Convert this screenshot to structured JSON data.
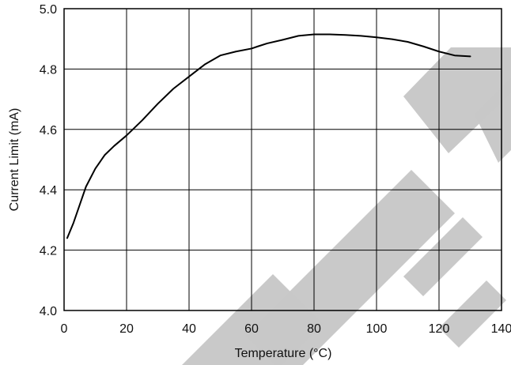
{
  "chart_data": {
    "type": "line",
    "title": "",
    "xlabel": "Temperature (°C)",
    "ylabel": "Current Limit (mA)",
    "xlim": [
      0,
      140
    ],
    "ylim": [
      4.0,
      5.0
    ],
    "x_ticks": [
      0,
      20,
      40,
      60,
      80,
      100,
      120,
      140
    ],
    "y_ticks": [
      4.0,
      4.2,
      4.4,
      4.6,
      4.8,
      5.0
    ],
    "x_tick_labels": [
      "0",
      "20",
      "40",
      "60",
      "80",
      "100",
      "120",
      "140"
    ],
    "y_tick_labels": [
      "4.0",
      "4.2",
      "4.4",
      "4.6",
      "4.8",
      "5.0"
    ],
    "grid": true,
    "legend": "none",
    "series": [
      {
        "x": [
          1,
          3,
          5,
          7,
          10,
          13,
          16,
          20,
          25,
          30,
          35,
          40,
          45,
          50,
          55,
          60,
          62,
          65,
          70,
          75,
          80,
          85,
          90,
          95,
          100,
          105,
          110,
          115,
          120,
          125,
          130
        ],
        "y": [
          4.24,
          4.29,
          4.35,
          4.41,
          4.47,
          4.515,
          4.545,
          4.58,
          4.63,
          4.685,
          4.735,
          4.775,
          4.815,
          4.845,
          4.858,
          4.868,
          4.875,
          4.885,
          4.897,
          4.91,
          4.915,
          4.915,
          4.913,
          4.91,
          4.905,
          4.899,
          4.89,
          4.875,
          4.858,
          4.845,
          4.842
        ]
      }
    ],
    "colors": {
      "line": "#000000",
      "grid": "#000000",
      "watermark": "#c8c8c8"
    }
  },
  "watermark": {
    "text_primary": "OBSOLETE",
    "text_secondary": "DEVICE"
  }
}
